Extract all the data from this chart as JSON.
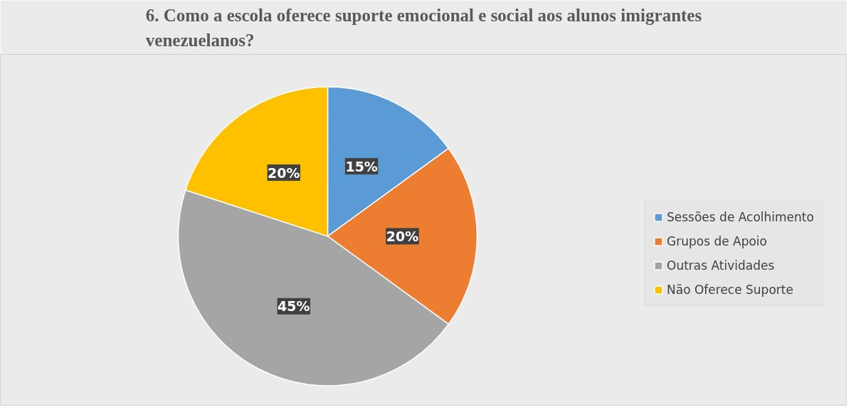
{
  "chart_data": {
    "type": "pie",
    "title": "6. Como a escola oferece suporte emocional e social aos alunos imigrantes venezuelanos?",
    "categories": [
      "Sessões de Acolhimento",
      "Grupos de Apoio",
      "Outras Atividades",
      "Não Oferece Suporte"
    ],
    "values": [
      15,
      20,
      45,
      20
    ],
    "colors": [
      "#5b9bd5",
      "#ed7d31",
      "#a5a5a5",
      "#ffc000"
    ],
    "value_labels": [
      "15%",
      "20%",
      "45%",
      "20%"
    ],
    "legend": "right"
  }
}
